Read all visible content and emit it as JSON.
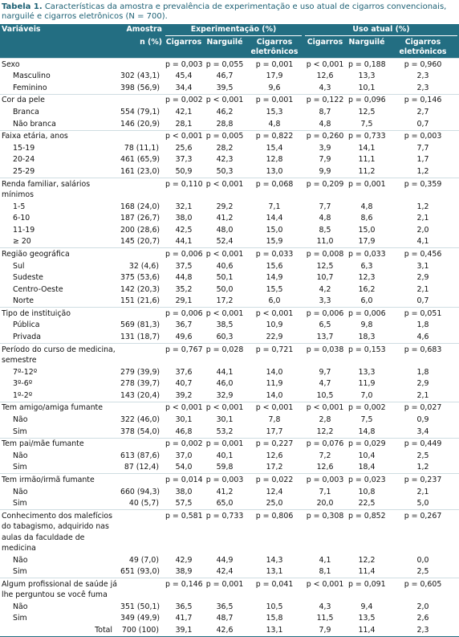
{
  "caption": {
    "label": "Tabela 1.",
    "text": "Características da amostra e prevalência de experimentação e uso atual de cigarros convencionais, narguilé e cigarros eletrônicos (N = 700)."
  },
  "header": {
    "variable": "Variáveis",
    "sample": "Amostra",
    "sample_unit": "n (%)",
    "groups": [
      {
        "title": "Experimentação (%)",
        "columns": [
          "Cigarros",
          "Narguilé",
          "Cigarros eletrônicos"
        ]
      },
      {
        "title": "Uso atual (%)",
        "columns": [
          "Cigarros",
          "Narguilé",
          "Cigarros eletrônicos"
        ]
      }
    ]
  },
  "rows": [
    {
      "label": "Sexo",
      "p": [
        "p = 0,003",
        "p = 0,055",
        "p = 0,001",
        "p < 0,001",
        "p = 0,188",
        "p = 0,960"
      ]
    },
    {
      "label": "Masculino",
      "n": "302 (43,1)",
      "values": [
        "45,4",
        "46,7",
        "17,9",
        "12,6",
        "13,3",
        "2,3"
      ]
    },
    {
      "label": "Feminino",
      "n": "398 (56,9)",
      "values": [
        "34,4",
        "39,5",
        "9,6",
        "4,3",
        "10,1",
        "2,3"
      ]
    },
    {
      "label": "Cor da pele",
      "p": [
        "p = 0,002",
        "p < 0,001",
        "p = 0,001",
        "p = 0,122",
        "p = 0,096",
        "p = 0,146"
      ]
    },
    {
      "label": "Branca",
      "n": "554 (79,1)",
      "values": [
        "42,1",
        "46,2",
        "15,3",
        "8,7",
        "12,5",
        "2,7"
      ]
    },
    {
      "label": "Não branca",
      "n": "146 (20,9)",
      "values": [
        "28,1",
        "28,8",
        "4,8",
        "4,8",
        "7,5",
        "0,7"
      ]
    },
    {
      "label": "Faixa etária, anos",
      "p": [
        "p < 0,001",
        "p = 0,005",
        "p = 0,822",
        "p = 0,260",
        "p = 0,733",
        "p = 0,003"
      ]
    },
    {
      "label": "15-19",
      "n": "78 (11,1)",
      "values": [
        "25,6",
        "28,2",
        "15,4",
        "3,9",
        "14,1",
        "7,7"
      ]
    },
    {
      "label": "20-24",
      "n": "461 (65,9)",
      "values": [
        "37,3",
        "42,3",
        "12,8",
        "7,9",
        "11,1",
        "1,7"
      ]
    },
    {
      "label": "25-29",
      "n": "161 (23,0)",
      "values": [
        "50,9",
        "50,3",
        "13,0",
        "9,9",
        "11,2",
        "1,2"
      ]
    },
    {
      "label": "Renda familiar, salários mínimos",
      "p": [
        "p = 0,110",
        "p < 0,001",
        "p = 0,068",
        "p = 0,209",
        "p = 0,001",
        "p = 0,359"
      ]
    },
    {
      "label": "1-5",
      "n": "168 (24,0)",
      "values": [
        "32,1",
        "29,2",
        "7,1",
        "7,7",
        "4,8",
        "1,2"
      ]
    },
    {
      "label": "6-10",
      "n": "187 (26,7)",
      "values": [
        "38,0",
        "41,2",
        "14,4",
        "4,8",
        "8,6",
        "2,1"
      ]
    },
    {
      "label": "11-19",
      "n": "200 (28,6)",
      "values": [
        "42,5",
        "48,0",
        "15,0",
        "8,5",
        "15,0",
        "2,0"
      ]
    },
    {
      "label": "≥ 20",
      "n": "145 (20,7)",
      "values": [
        "44,1",
        "52,4",
        "15,9",
        "11,0",
        "17,9",
        "4,1"
      ]
    },
    {
      "label": "Região geográfica",
      "p": [
        "p = 0,006",
        "p < 0,001",
        "p = 0,033",
        "p = 0,008",
        "p = 0,033",
        "p = 0,456"
      ]
    },
    {
      "label": "Sul",
      "n": "32 (4,6)",
      "values": [
        "37,5",
        "40,6",
        "15,6",
        "12,5",
        "6,3",
        "3,1"
      ]
    },
    {
      "label": "Sudeste",
      "n": "375 (53,6)",
      "values": [
        "44,8",
        "50,1",
        "14,9",
        "10,7",
        "12,3",
        "2,9"
      ]
    },
    {
      "label": "Centro-Oeste",
      "n": "142 (20,3)",
      "values": [
        "35,2",
        "50,0",
        "15,5",
        "4,2",
        "16,2",
        "2,1"
      ]
    },
    {
      "label": "Norte",
      "n": "151 (21,6)",
      "values": [
        "29,1",
        "17,2",
        "6,0",
        "3,3",
        "6,0",
        "0,7"
      ]
    },
    {
      "label": "Tipo de instituição",
      "p": [
        "p = 0,006",
        "p < 0,001",
        "p < 0,001",
        "p = 0,006",
        "p = 0,006",
        "p = 0,051"
      ]
    },
    {
      "label": "Pública",
      "n": "569 (81,3)",
      "values": [
        "36,7",
        "38,5",
        "10,9",
        "6,5",
        "9,8",
        "1,8"
      ]
    },
    {
      "label": "Privada",
      "n": "131 (18,7)",
      "values": [
        "49,6",
        "60,3",
        "22,9",
        "13,7",
        "18,3",
        "4,6"
      ]
    },
    {
      "label": "Período do curso de medicina, semestre",
      "p": [
        "p = 0,767",
        "p = 0,028",
        "p = 0,721",
        "p = 0,038",
        "p = 0,153",
        "p = 0,683"
      ]
    },
    {
      "label": "7º-12º",
      "n": "279 (39,9)",
      "values": [
        "37,6",
        "44,1",
        "14,0",
        "9,7",
        "13,3",
        "1,8"
      ]
    },
    {
      "label": "3º-6º",
      "n": "278 (39,7)",
      "values": [
        "40,7",
        "46,0",
        "11,9",
        "4,7",
        "11,9",
        "2,9"
      ]
    },
    {
      "label": "1º-2º",
      "n": "143 (20,4)",
      "values": [
        "39,2",
        "32,9",
        "14,0",
        "10,5",
        "7,0",
        "2,1"
      ]
    },
    {
      "label": "Tem amigo/amiga fumante",
      "p": [
        "p < 0,001",
        "p < 0,001",
        "p < 0,001",
        "p < 0,001",
        "p = 0,002",
        "p = 0,027"
      ]
    },
    {
      "label": "Não",
      "n": "322 (46,0)",
      "values": [
        "30,1",
        "30,1",
        "7,8",
        "2,8",
        "7,5",
        "0,9"
      ]
    },
    {
      "label": "Sim",
      "n": "378 (54,0)",
      "values": [
        "46,8",
        "53,2",
        "17,7",
        "12,2",
        "14,8",
        "3,4"
      ]
    },
    {
      "label": "Tem pai/mãe fumante",
      "p": [
        "p = 0,002",
        "p = 0,001",
        "p = 0,227",
        "p = 0,076",
        "p = 0,029",
        "p = 0,449"
      ]
    },
    {
      "label": "Não",
      "n": "613 (87,6)",
      "values": [
        "37,0",
        "40,1",
        "12,6",
        "7,2",
        "10,4",
        "2,5"
      ]
    },
    {
      "label": "Sim",
      "n": "87 (12,4)",
      "values": [
        "54,0",
        "59,8",
        "17,2",
        "12,6",
        "18,4",
        "1,2"
      ]
    },
    {
      "label": "Tem irmão/irmã fumante",
      "p": [
        "p = 0,014",
        "p = 0,003",
        "p = 0,022",
        "p = 0,003",
        "p = 0,023",
        "p = 0,237"
      ]
    },
    {
      "label": "Não",
      "n": "660 (94,3)",
      "values": [
        "38,0",
        "41,2",
        "12,4",
        "7,1",
        "10,8",
        "2,1"
      ]
    },
    {
      "label": "Sim",
      "n": "40 (5,7)",
      "values": [
        "57,5",
        "65,0",
        "25,0",
        "20,0",
        "22,5",
        "5,0"
      ]
    },
    {
      "label": "Conhecimento dos malefícios do tabagismo, adquirido nas aulas da faculdade de medicina",
      "p": [
        "p = 0,581",
        "p = 0,733",
        "p = 0,806",
        "p = 0,308",
        "p = 0,852",
        "p = 0,267"
      ]
    },
    {
      "label": "Não",
      "n": "49 (7,0)",
      "values": [
        "42,9",
        "44,9",
        "14,3",
        "4,1",
        "12,2",
        "0,0"
      ]
    },
    {
      "label": "Sim",
      "n": "651 (93,0)",
      "values": [
        "38,9",
        "42,4",
        "13,1",
        "8,1",
        "11,4",
        "2,5"
      ]
    },
    {
      "label": "Algum profissional de saúde já lhe perguntou se você fuma",
      "p": [
        "p = 0,146",
        "p = 0,001",
        "p = 0,041",
        "p < 0,001",
        "p = 0,091",
        "p = 0,605"
      ]
    },
    {
      "label": "Não",
      "n": "351 (50,1)",
      "values": [
        "36,5",
        "36,5",
        "10,5",
        "4,3",
        "9,4",
        "2,0"
      ]
    },
    {
      "label": "Sim",
      "n": "349 (49,9)",
      "values": [
        "41,7",
        "48,7",
        "15,8",
        "11,5",
        "13,5",
        "2,6"
      ]
    },
    {
      "label": "Total",
      "n": "700 (100)",
      "values": [
        "39,1",
        "42,6",
        "13,1",
        "7,9",
        "11,4",
        "2,3"
      ]
    }
  ]
}
